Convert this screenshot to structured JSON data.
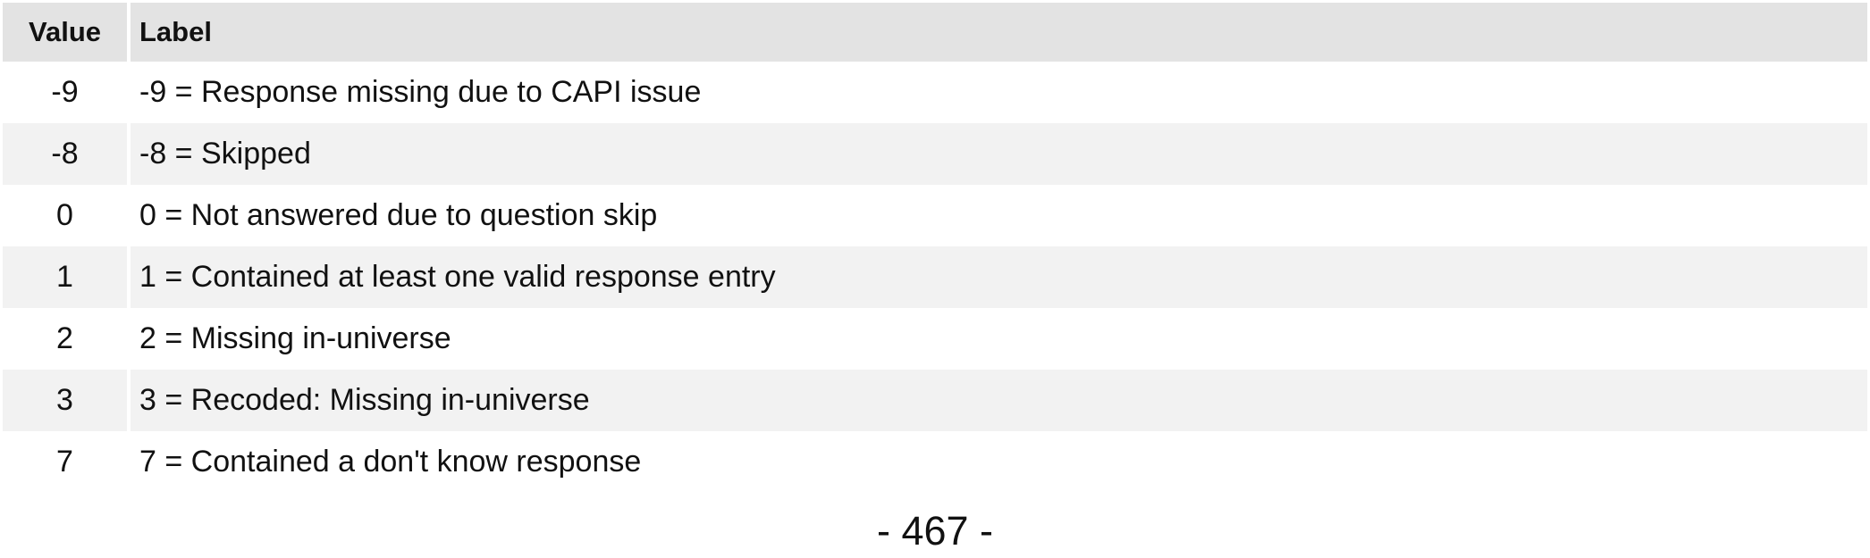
{
  "table": {
    "headers": {
      "value": "Value",
      "label": "Label"
    },
    "rows": [
      {
        "value": "-9",
        "label": "-9 = Response missing due to CAPI issue"
      },
      {
        "value": "-8",
        "label": "-8 = Skipped"
      },
      {
        "value": "0",
        "label": "0 = Not answered due to question skip"
      },
      {
        "value": "1",
        "label": "1 = Contained at least one valid response entry"
      },
      {
        "value": "2",
        "label": "2 = Missing in-universe"
      },
      {
        "value": "3",
        "label": "3 = Recoded: Missing in-universe"
      },
      {
        "value": "7",
        "label": "7 = Contained a don't know response"
      }
    ]
  },
  "footer": {
    "page_number": "- 467 -"
  },
  "colors": {
    "header_background": "#e3e3e3",
    "shaded_row_background": "#f2f2f2",
    "text": "#111111"
  }
}
